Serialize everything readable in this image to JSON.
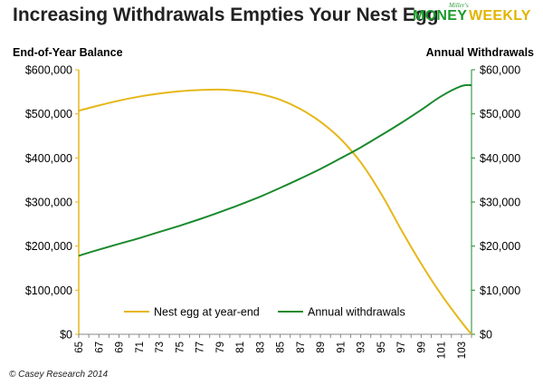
{
  "header": {
    "title": "Increasing Withdrawals Empties Your Nest Egg",
    "brand_tagline": "Miller's",
    "brand_word1": "MONEY",
    "brand_word2": "WEEKLY"
  },
  "footer": {
    "credit": "© Casey Research 2014"
  },
  "colors": {
    "nest_egg": "#e6b719",
    "withdrawals": "#1a8a2e",
    "brand_green": "#1a9a2a",
    "brand_gold": "#e2b400"
  },
  "chart_data": {
    "type": "line",
    "ylabel_left": "End-of-Year Balance",
    "ylabel_right": "Annual Withdrawals",
    "ylim_left": [
      0,
      600000
    ],
    "ylim_right": [
      0,
      60000
    ],
    "yticks_left": [
      "$0",
      "$100,000",
      "$200,000",
      "$300,000",
      "$400,000",
      "$500,000",
      "$600,000"
    ],
    "yticks_right": [
      "$0",
      "$10,000",
      "$20,000",
      "$30,000",
      "$40,000",
      "$50,000",
      "$60,000"
    ],
    "xlim": [
      65,
      104
    ],
    "xticks": [
      "65",
      "67",
      "69",
      "71",
      "73",
      "75",
      "77",
      "79",
      "81",
      "83",
      "85",
      "87",
      "89",
      "91",
      "93",
      "95",
      "97",
      "99",
      "101",
      "103"
    ],
    "grid": false,
    "legend_position": "bottom-center",
    "series": [
      {
        "name": "Nest egg at year-end",
        "axis": "left",
        "x": [
          65,
          67,
          69,
          71,
          73,
          75,
          77,
          79,
          81,
          83,
          85,
          87,
          89,
          91,
          93,
          95,
          97,
          99,
          101,
          103,
          104
        ],
        "values": [
          507000,
          519000,
          530000,
          539000,
          546000,
          551000,
          554000,
          555000,
          552000,
          545000,
          532000,
          511000,
          482000,
          443000,
          390000,
          320000,
          238000,
          160000,
          90000,
          28000,
          0
        ]
      },
      {
        "name": "Annual withdrawals",
        "axis": "right",
        "x": [
          65,
          67,
          69,
          71,
          73,
          75,
          77,
          79,
          81,
          83,
          85,
          87,
          89,
          91,
          93,
          95,
          97,
          99,
          101,
          103,
          104
        ],
        "values": [
          17800,
          19200,
          20500,
          21800,
          23200,
          24600,
          26100,
          27700,
          29400,
          31200,
          33200,
          35300,
          37500,
          39900,
          42400,
          45100,
          47900,
          50900,
          54000,
          56300,
          56500
        ]
      }
    ]
  }
}
